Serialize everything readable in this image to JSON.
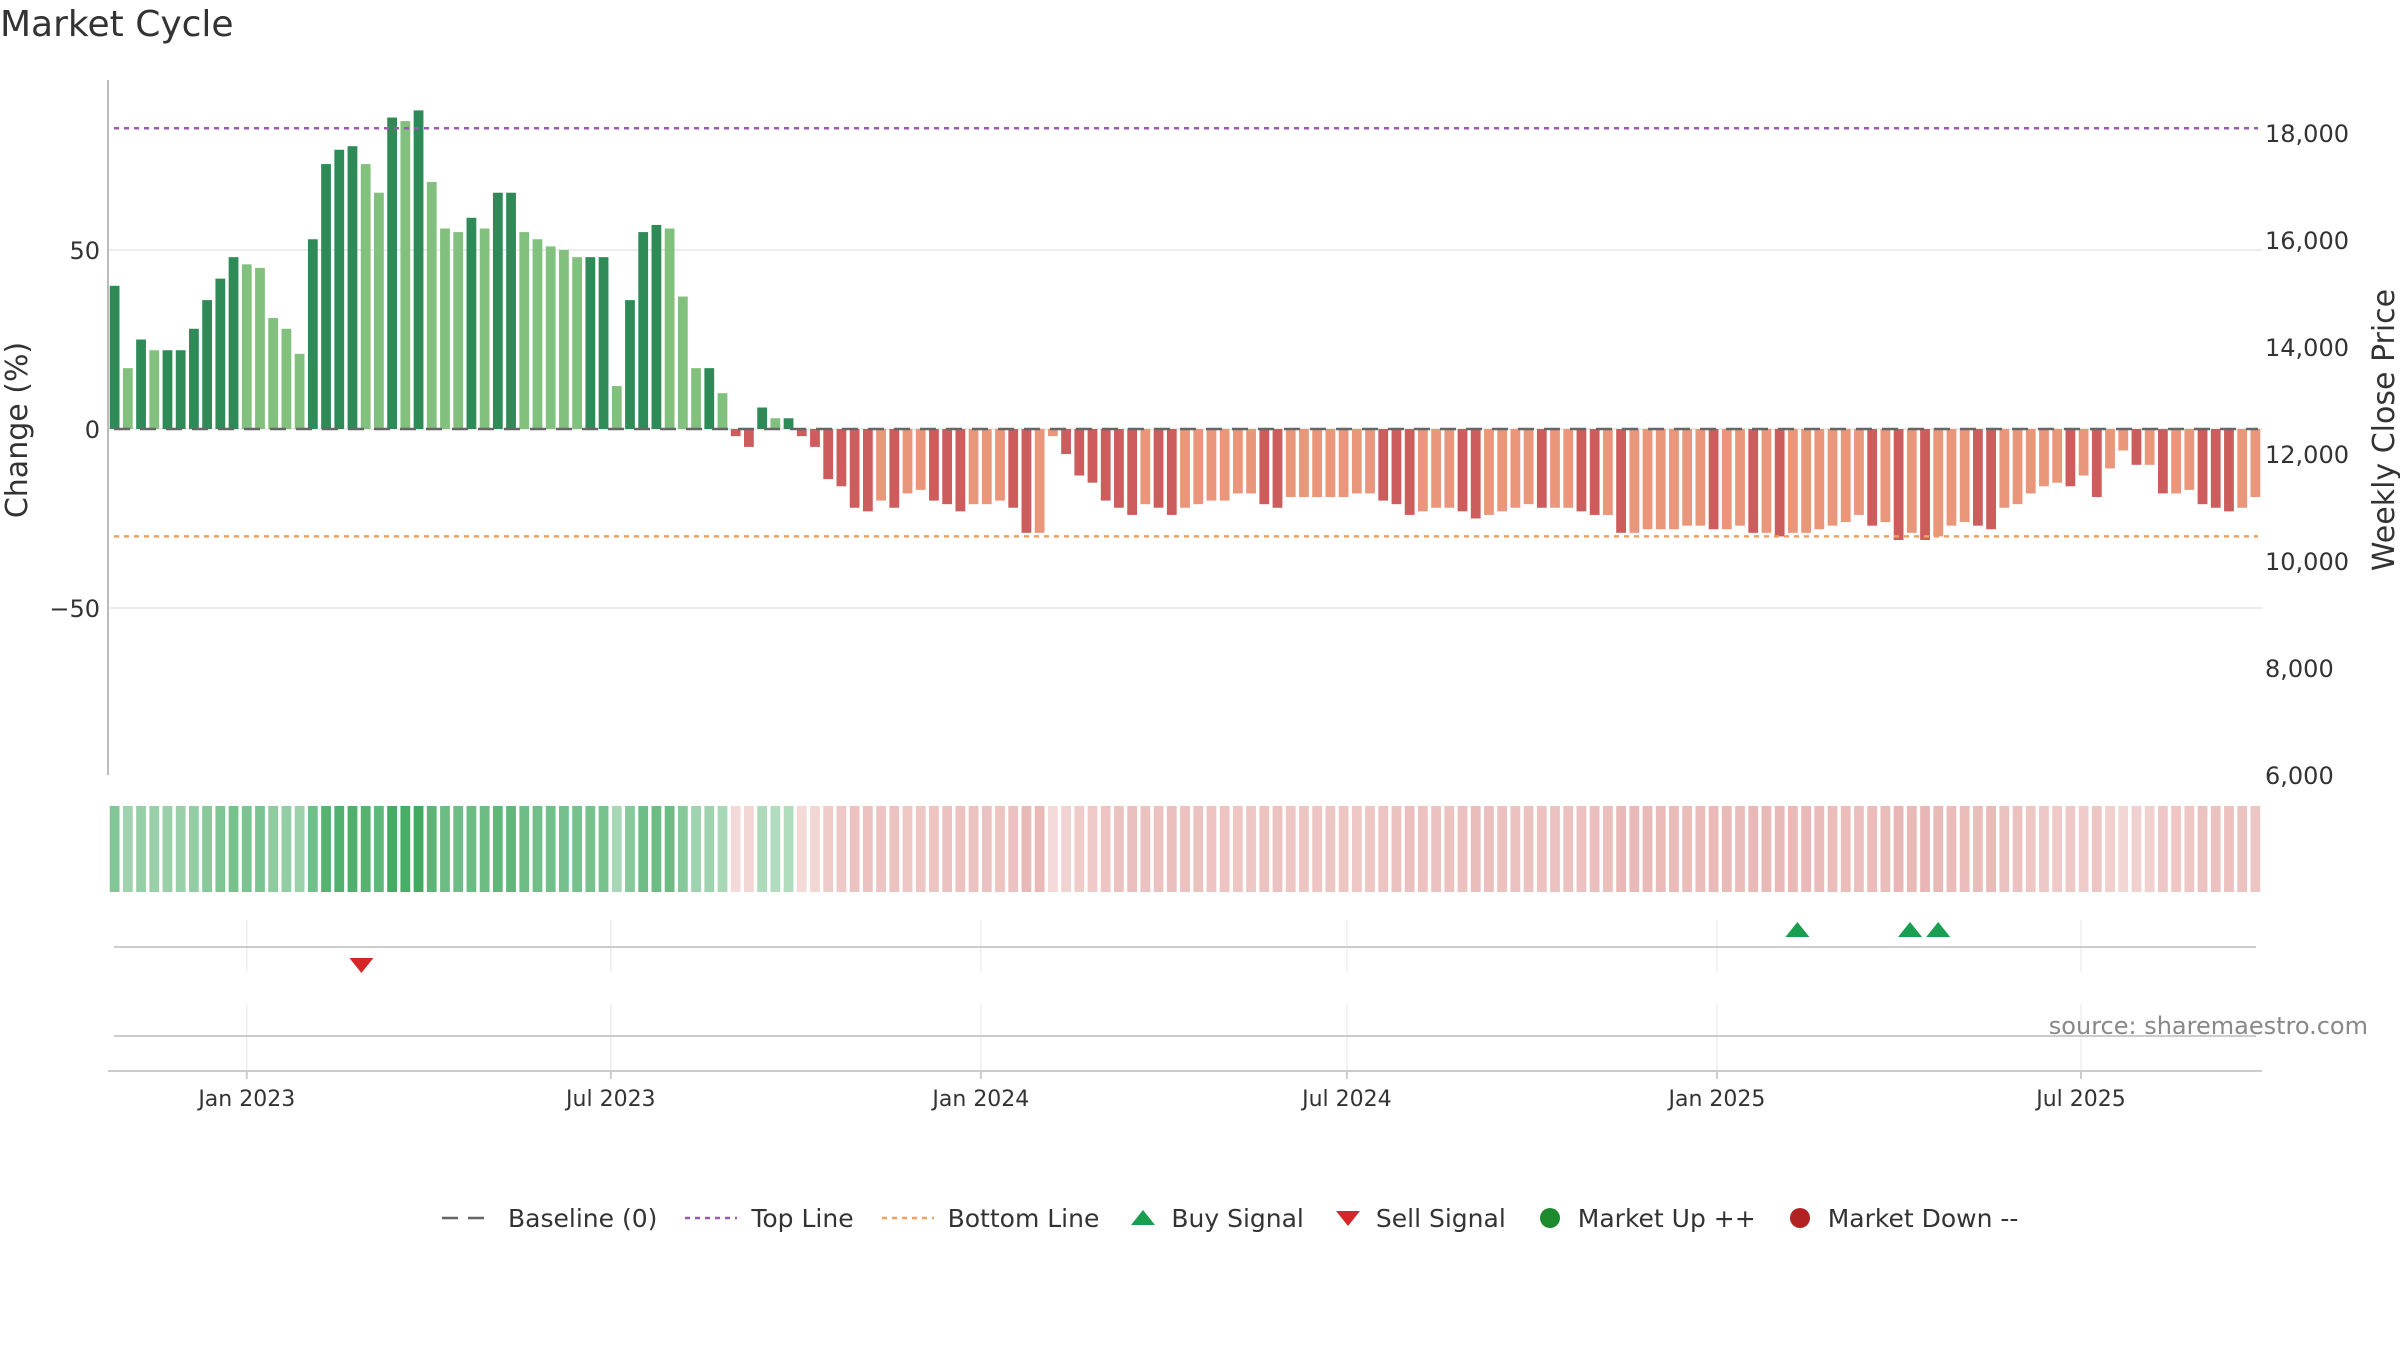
{
  "title": "Market Cycle",
  "source": "source: sharemaestro.com",
  "legend": [
    {
      "label": "Baseline (0)",
      "symbol": "dash",
      "color": "#666666"
    },
    {
      "label": "Top Line",
      "symbol": "dotted",
      "color": "#9b59b6"
    },
    {
      "label": "Bottom Line",
      "symbol": "dotted",
      "color": "#f0a060"
    },
    {
      "label": "Buy Signal",
      "symbol": "triangle-up",
      "color": "#1a9e50"
    },
    {
      "label": "Sell Signal",
      "symbol": "triangle-down",
      "color": "#d62728"
    },
    {
      "label": "Market Up ++",
      "symbol": "circle",
      "color": "#1e8a2e"
    },
    {
      "label": "Market Down --",
      "symbol": "circle",
      "color": "#b22222"
    }
  ],
  "chart_data": {
    "type": "bar",
    "title": "Market Cycle",
    "ylabel": "Change (%)",
    "y2label": "Weekly Close Price",
    "ylim": [
      -97,
      97
    ],
    "y2lim": [
      6000,
      18800
    ],
    "yticks": [
      50,
      0,
      -50
    ],
    "ytick_labels": [
      "50",
      "0",
      "−50"
    ],
    "y2ticks": [
      18000,
      16000,
      14000,
      12000,
      10000,
      8000,
      6000
    ],
    "y2tick_labels": [
      "18,000",
      "16,000",
      "14,000",
      "12,000",
      "10,000",
      "8,000",
      "6,000"
    ],
    "top_line": 84,
    "bottom_line": -30,
    "baseline": 0,
    "x_start": "2022-10-24",
    "x_end": "2025-09-29",
    "xticks": [
      "2023-01-01",
      "2023-07-01",
      "2024-01-01",
      "2024-07-01",
      "2025-01-01",
      "2025-07-01"
    ],
    "xtick_labels": [
      "Jan 2023",
      "Jul 2023",
      "Jan 2024",
      "Jul 2024",
      "Jan 2025",
      "Jul 2025"
    ],
    "grid": true,
    "legend_position": "bottom",
    "values": [
      40,
      17,
      25,
      22,
      22,
      22,
      28,
      36,
      42,
      48,
      46,
      45,
      31,
      28,
      21,
      53,
      74,
      78,
      79,
      74,
      66,
      87,
      86,
      89,
      69,
      56,
      55,
      59,
      56,
      66,
      66,
      55,
      53,
      51,
      50,
      48,
      48,
      48,
      12,
      36,
      55,
      57,
      56,
      37,
      17,
      17,
      10,
      -2,
      -5,
      6,
      3,
      3,
      -2,
      -5,
      -14,
      -16,
      -22,
      -23,
      -20,
      -22,
      -18,
      -17,
      -20,
      -21,
      -23,
      -21,
      -21,
      -20,
      -22,
      -29,
      -29,
      -2,
      -7,
      -13,
      -15,
      -20,
      -22,
      -24,
      -21,
      -22,
      -24,
      -22,
      -21,
      -20,
      -20,
      -18,
      -18,
      -21,
      -22,
      -19,
      -19,
      -19,
      -19,
      -19,
      -18,
      -18,
      -20,
      -21,
      -24,
      -23,
      -22,
      -22,
      -23,
      -25,
      -24,
      -23,
      -22,
      -21,
      -22,
      -22,
      -22,
      -23,
      -24,
      -24,
      -29,
      -29,
      -28,
      -28,
      -28,
      -27,
      -27,
      -28,
      -28,
      -27,
      -29,
      -29,
      -30,
      -29,
      -29,
      -28,
      -27,
      -26,
      -24,
      -27,
      -26,
      -31,
      -29,
      -31,
      -30,
      -27,
      -26,
      -27,
      -28,
      -22,
      -21,
      -18,
      -16,
      -15,
      -16,
      -13,
      -19,
      -11,
      -6,
      -10,
      -10,
      -18,
      -18,
      -17,
      -21,
      -22,
      -23,
      -22,
      -19
    ],
    "buy_signals": [
      "2025-02-10",
      "2025-04-07",
      "2025-04-21"
    ],
    "sell_signals": [
      "2023-02-27"
    ],
    "colors": {
      "up_dark": "#2e8b57",
      "up_light": "#82c07e",
      "down_dark": "#cd5c5c",
      "down_light": "#e9967a",
      "top_line": "#9b59b6",
      "bottom_line": "#f0a060",
      "buy": "#1a9e50",
      "sell": "#d62728"
    }
  }
}
